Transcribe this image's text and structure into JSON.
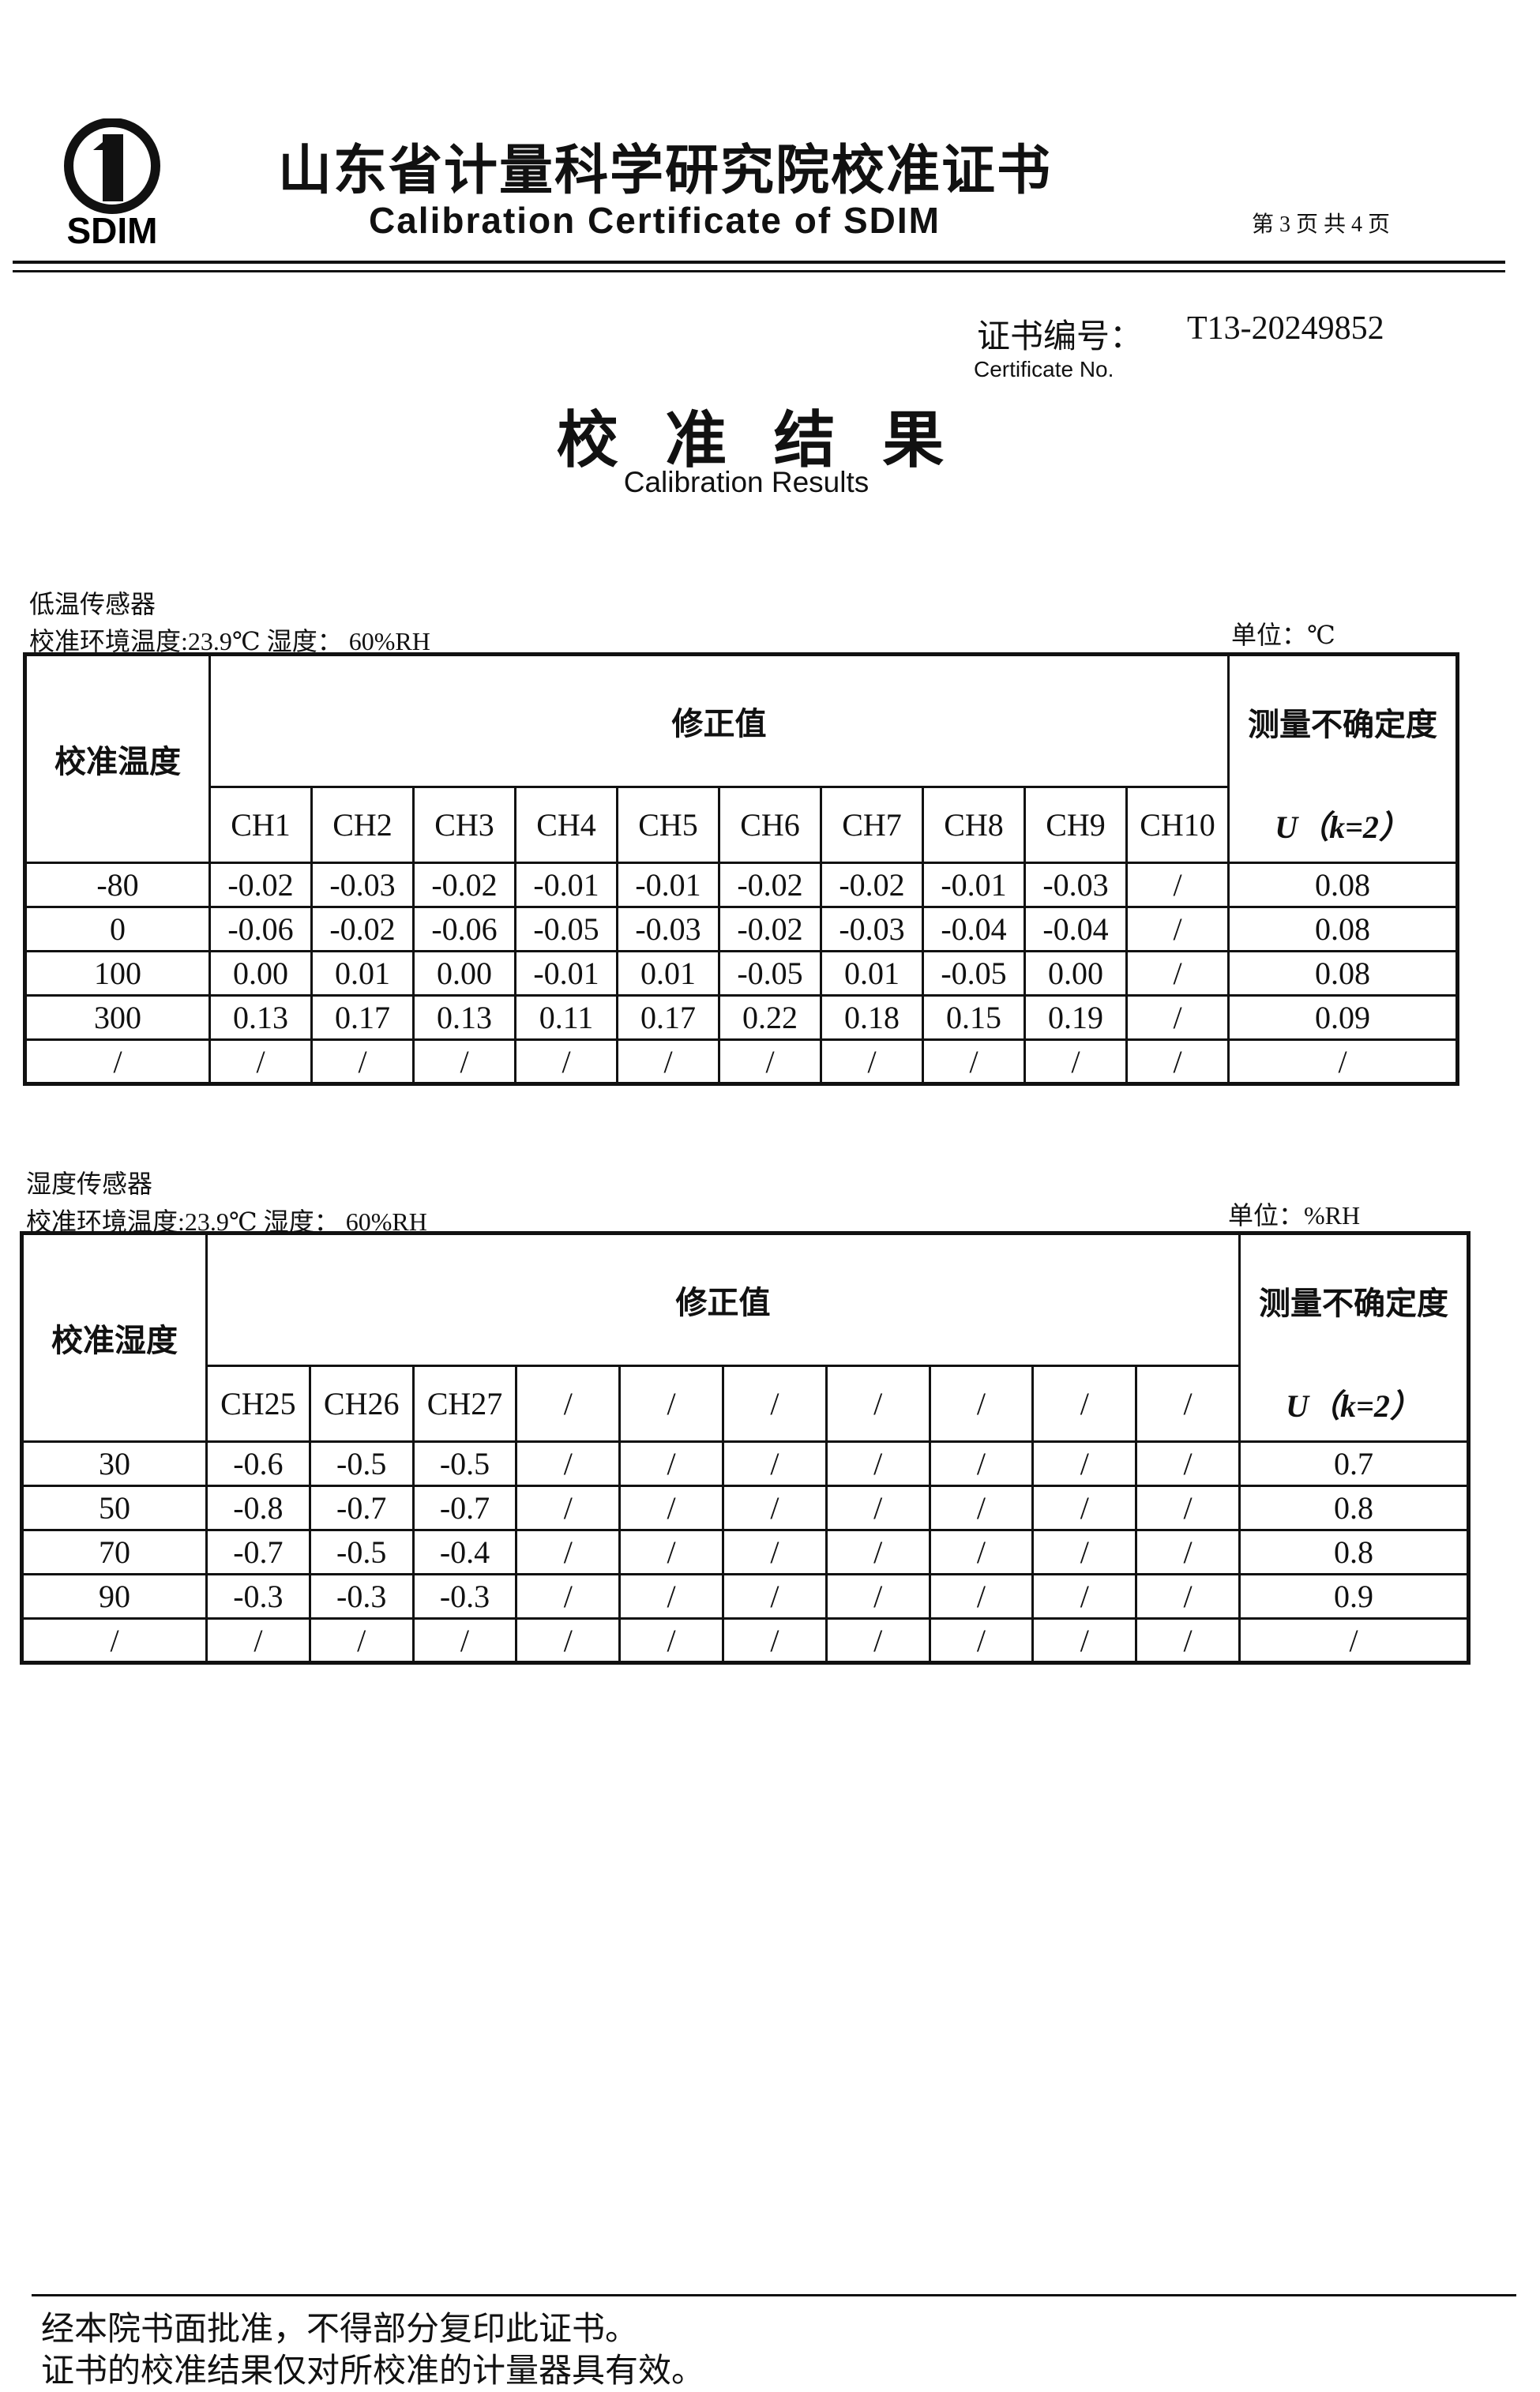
{
  "header": {
    "logo_text": "SDIM",
    "title_cn": "山东省计量科学研究院校准证书",
    "title_en": "Calibration Certificate of SDIM",
    "page": "第 3 页 共 4 页"
  },
  "certificate": {
    "label_cn": "证书编号：",
    "number": "T13-20249852",
    "label_en": "Certificate No."
  },
  "results": {
    "title_cn": "校 准 结 果",
    "title_en": "Calibration Results"
  },
  "tables": [
    {
      "section": "低温传感器",
      "environment": "校准环境温度:23.9℃ 湿度： 60%RH",
      "unit": "单位：℃",
      "header_first": "校准温度",
      "header_group": "修正值",
      "header_uncertainty": "测量不确定度",
      "uncertainty_formula": "U（k=2）",
      "channels": [
        "CH1",
        "CH2",
        "CH3",
        "CH4",
        "CH5",
        "CH6",
        "CH7",
        "CH8",
        "CH9",
        "CH10"
      ],
      "rows": [
        [
          "-80",
          "-0.02",
          "-0.03",
          "-0.02",
          "-0.01",
          "-0.01",
          "-0.02",
          "-0.02",
          "-0.01",
          "-0.03",
          "/",
          "0.08"
        ],
        [
          "0",
          "-0.06",
          "-0.02",
          "-0.06",
          "-0.05",
          "-0.03",
          "-0.02",
          "-0.03",
          "-0.04",
          "-0.04",
          "/",
          "0.08"
        ],
        [
          "100",
          "0.00",
          "0.01",
          "0.00",
          "-0.01",
          "0.01",
          "-0.05",
          "0.01",
          "-0.05",
          "0.00",
          "/",
          "0.08"
        ],
        [
          "300",
          "0.13",
          "0.17",
          "0.13",
          "0.11",
          "0.17",
          "0.22",
          "0.18",
          "0.15",
          "0.19",
          "/",
          "0.09"
        ],
        [
          "/",
          "/",
          "/",
          "/",
          "/",
          "/",
          "/",
          "/",
          "/",
          "/",
          "/",
          "/"
        ]
      ]
    },
    {
      "section": "湿度传感器",
      "environment": "校准环境温度:23.9℃ 湿度： 60%RH",
      "unit": "单位：%RH",
      "header_first": "校准湿度",
      "header_group": "修正值",
      "header_uncertainty": "测量不确定度",
      "uncertainty_formula": "U（k=2）",
      "channels": [
        "CH25",
        "CH26",
        "CH27",
        "/",
        "/",
        "/",
        "/",
        "/",
        "/",
        "/"
      ],
      "rows": [
        [
          "30",
          "-0.6",
          "-0.5",
          "-0.5",
          "/",
          "/",
          "/",
          "/",
          "/",
          "/",
          "/",
          "0.7"
        ],
        [
          "50",
          "-0.8",
          "-0.7",
          "-0.7",
          "/",
          "/",
          "/",
          "/",
          "/",
          "/",
          "/",
          "0.8"
        ],
        [
          "70",
          "-0.7",
          "-0.5",
          "-0.4",
          "/",
          "/",
          "/",
          "/",
          "/",
          "/",
          "/",
          "0.8"
        ],
        [
          "90",
          "-0.3",
          "-0.3",
          "-0.3",
          "/",
          "/",
          "/",
          "/",
          "/",
          "/",
          "/",
          "0.9"
        ],
        [
          "/",
          "/",
          "/",
          "/",
          "/",
          "/",
          "/",
          "/",
          "/",
          "/",
          "/",
          "/"
        ]
      ]
    }
  ],
  "footer": {
    "lines": [
      "经本院书面批准，不得部分复印此证书。",
      "证书的校准结果仅对所校准的计量器具有效。"
    ]
  }
}
